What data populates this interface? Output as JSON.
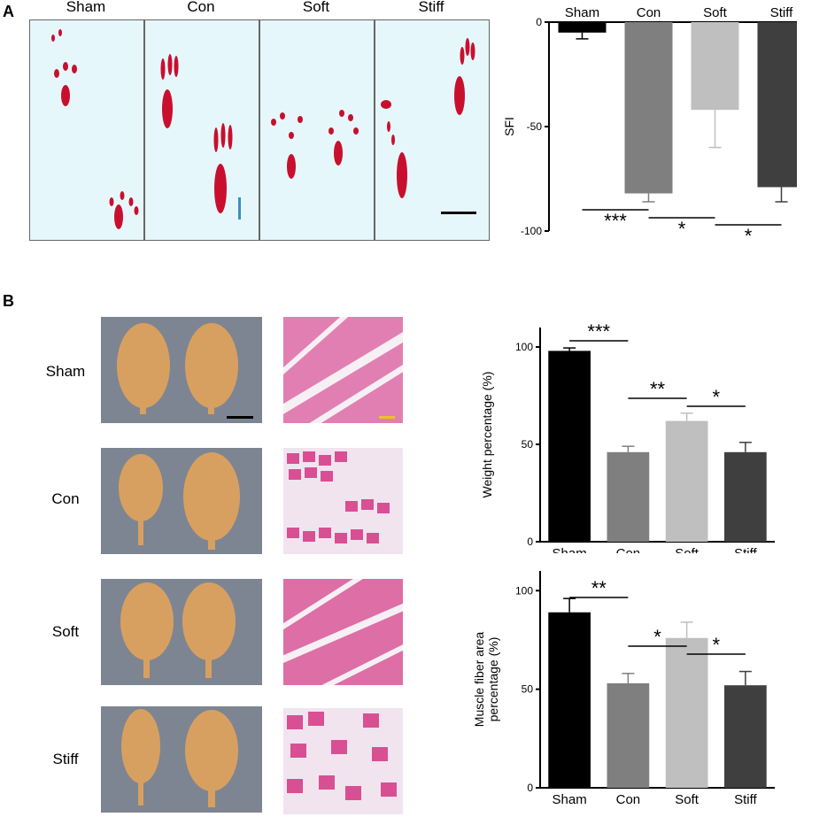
{
  "panelA": {
    "label": "A",
    "groups": [
      "Sham",
      "Con",
      "Soft",
      "Stiff"
    ]
  },
  "panelB": {
    "label": "B",
    "groups": [
      "Sham",
      "Con",
      "Soft",
      "Stiff"
    ]
  },
  "colors": {
    "sham": "#000000",
    "con": "#7f7f7f",
    "soft": "#bfbfbf",
    "stiff": "#3f3f3f",
    "footprint_bg": "#e6f7fb",
    "footprint_ink": "#c8102e",
    "histo_fiber": "#d94f94",
    "histo_gap": "#f4eef3"
  },
  "chart_data": [
    {
      "type": "bar",
      "id": "sfi",
      "categories": [
        "Sham",
        "Con",
        "Soft",
        "Stiff"
      ],
      "values": [
        -5,
        -82,
        -42,
        -79
      ],
      "errors": [
        3,
        4,
        18,
        7
      ],
      "ylabel": "SFI",
      "ylim": [
        -100,
        0
      ],
      "yticks": [
        0,
        -50,
        -100
      ],
      "category_labels_position": "top",
      "significance": [
        {
          "from": "Sham",
          "to": "Con",
          "label": "***"
        },
        {
          "from": "Con",
          "to": "Soft",
          "label": "*"
        },
        {
          "from": "Soft",
          "to": "Stiff",
          "label": "*"
        }
      ]
    },
    {
      "type": "bar",
      "id": "weight",
      "categories": [
        "Sham",
        "Con",
        "Soft",
        "Stiff"
      ],
      "values": [
        98,
        46,
        62,
        46
      ],
      "errors": [
        1.5,
        3,
        4,
        5
      ],
      "ylabel": "Weight percentage (%)",
      "ylim": [
        0,
        110
      ],
      "yticks": [
        0,
        50,
        100
      ],
      "significance": [
        {
          "from": "Sham",
          "to": "Con",
          "label": "***"
        },
        {
          "from": "Con",
          "to": "Soft",
          "label": "**"
        },
        {
          "from": "Soft",
          "to": "Stiff",
          "label": "*"
        }
      ]
    },
    {
      "type": "bar",
      "id": "fiber",
      "categories": [
        "Sham",
        "Con",
        "Soft",
        "Stiff"
      ],
      "values": [
        89,
        53,
        76,
        52
      ],
      "errors": [
        7,
        5,
        8,
        7
      ],
      "ylabel_line1": "Muscle fiber area",
      "ylabel_line2": "percentage (%)",
      "ylim": [
        0,
        110
      ],
      "yticks": [
        0,
        50,
        100
      ],
      "significance": [
        {
          "from": "Sham",
          "to": "Con",
          "label": "**"
        },
        {
          "from": "Con",
          "to": "Soft",
          "label": "*"
        },
        {
          "from": "Soft",
          "to": "Stiff",
          "label": "*"
        }
      ]
    }
  ]
}
